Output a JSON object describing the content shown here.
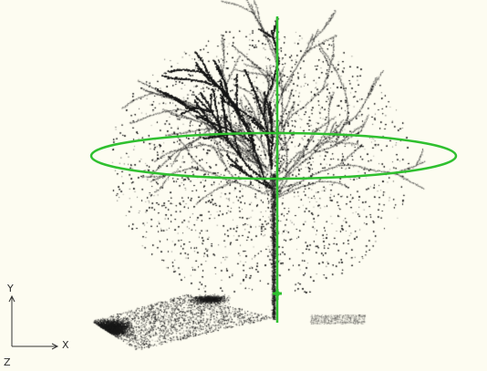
{
  "viewport": {
    "background_color": "#fdfcf1",
    "point_color": "#1a1a1a",
    "gizmo_color": "#2fc02f",
    "axis_triad_color": "#333333"
  },
  "axes": {
    "x_label": "X",
    "y_label": "Y",
    "z_label": "Z"
  },
  "gizmo": {
    "type": "rotation",
    "icons": [
      "vertical-axis-line",
      "horizontal-rotation-ring",
      "pivot-marker"
    ]
  },
  "scene": {
    "objects": [
      "tree-point-cloud",
      "ground-patch-point-cloud"
    ]
  }
}
